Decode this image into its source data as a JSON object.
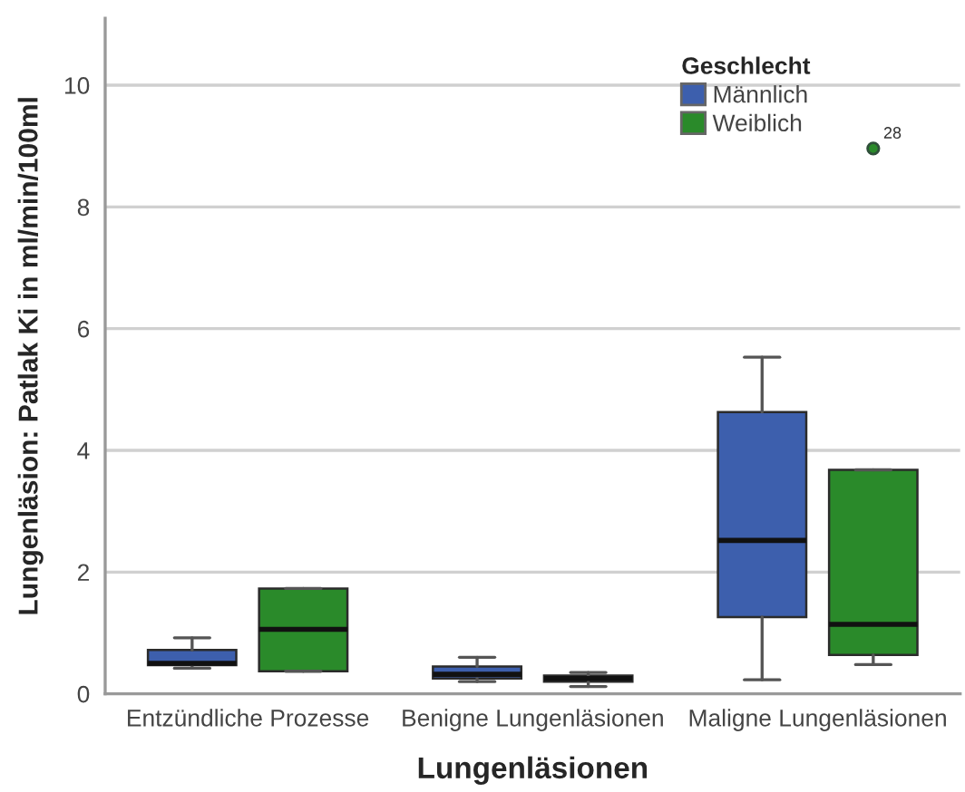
{
  "chart_data": {
    "type": "box",
    "xlabel": "Lungenläsionen",
    "ylabel": "Lungenläsion: Patlak Ki in ml/min/100ml",
    "legend_title": "Geschlecht",
    "categories": [
      "Entzündliche Prozesse",
      "Benigne Lungenläsionen",
      "Maligne Lungenläsionen"
    ],
    "ylim": [
      0,
      11.1
    ],
    "yticks": [
      0,
      2,
      4,
      6,
      8,
      10
    ],
    "grid": "y",
    "legend": "top right",
    "annotations": [
      "28"
    ],
    "series": [
      {
        "name": "Männlich",
        "color": "#3d5fad",
        "boxes": [
          {
            "low": 0.42,
            "q1": 0.47,
            "median": 0.5,
            "q3": 0.72,
            "high": 0.92
          },
          {
            "low": 0.2,
            "q1": 0.25,
            "median": 0.32,
            "q3": 0.45,
            "high": 0.6
          },
          {
            "low": 0.23,
            "q1": 1.26,
            "median": 2.52,
            "q3": 4.63,
            "high": 5.53
          }
        ]
      },
      {
        "name": "Weiblich",
        "color": "#2a8a2a",
        "boxes": [
          {
            "low": 0.37,
            "q1": 0.37,
            "median": 1.06,
            "q3": 1.73,
            "high": 1.73
          },
          {
            "low": 0.12,
            "q1": 0.2,
            "median": 0.25,
            "q3": 0.3,
            "high": 0.35
          },
          {
            "low": 0.48,
            "q1": 0.64,
            "median": 1.14,
            "q3": 3.68,
            "high": 3.68,
            "outliers": [
              8.96
            ]
          }
        ]
      }
    ]
  }
}
